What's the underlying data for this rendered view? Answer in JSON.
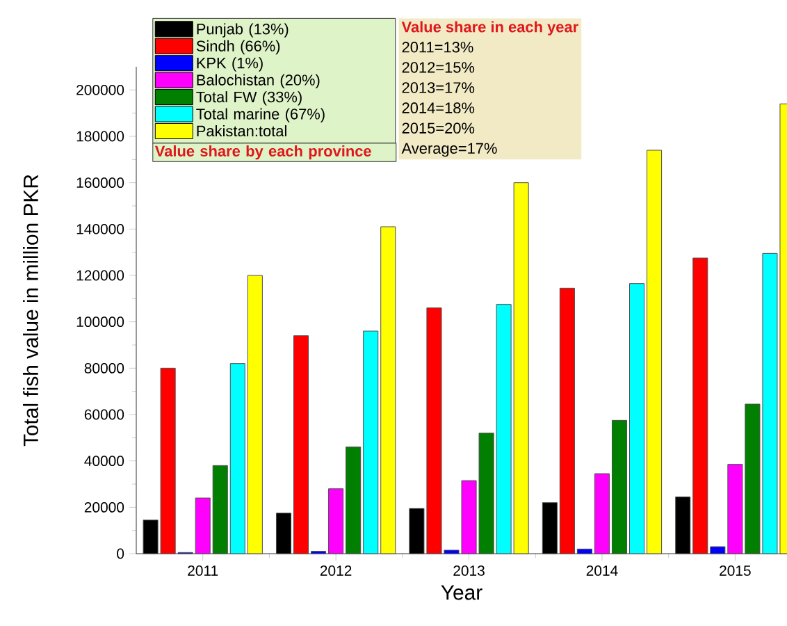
{
  "chart_data": {
    "type": "bar",
    "xlabel": "Year",
    "ylabel": "Total fish value in million PKR",
    "categories": [
      "2011",
      "2012",
      "2013",
      "2014",
      "2015"
    ],
    "series": [
      {
        "name": "Punjab  (13%)",
        "color": "#000000",
        "values": [
          14500,
          17500,
          19500,
          22000,
          24500
        ]
      },
      {
        "name": "Sindh  (66%)",
        "color": "#ff0000",
        "values": [
          80000,
          94000,
          106000,
          114500,
          127500
        ]
      },
      {
        "name": "KPK (1%)",
        "color": "#0000ff",
        "values": [
          500,
          1000,
          1500,
          2000,
          3000
        ]
      },
      {
        "name": "Balochistan (20%)",
        "color": "#ff00ff",
        "values": [
          24000,
          28000,
          31500,
          34500,
          38500
        ]
      },
      {
        "name": "Total FW (33%)",
        "color": "#007f00",
        "values": [
          38000,
          46000,
          52000,
          57500,
          64500
        ]
      },
      {
        "name": "Total marine (67%)",
        "color": "#00ffff",
        "values": [
          82000,
          96000,
          107500,
          116500,
          129500
        ]
      },
      {
        "name": "Pakistan:total",
        "color": "#ffff00",
        "values": [
          120000,
          141000,
          160000,
          174000,
          194000
        ]
      }
    ],
    "ylim": [
      0,
      210000
    ],
    "yticks": [
      0,
      20000,
      40000,
      60000,
      80000,
      100000,
      120000,
      140000,
      160000,
      180000,
      200000
    ],
    "legend": "top left",
    "annotations": [
      "Value share by each province",
      "Value share in each year",
      "2011=13%",
      "2012=15%",
      "2013=17%",
      "2014=18%",
      "2015=20%",
      "Average=17%"
    ]
  }
}
